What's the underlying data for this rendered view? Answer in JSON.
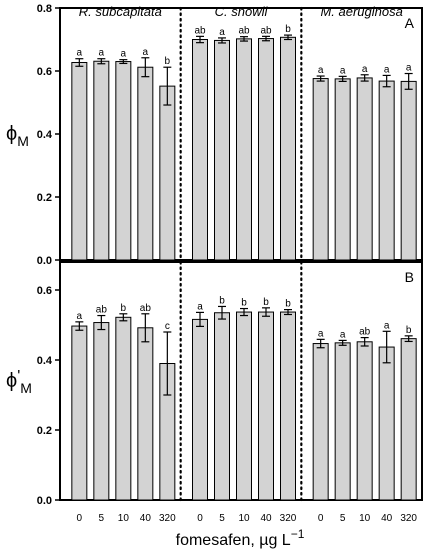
{
  "chart_data": {
    "type": "bar",
    "x_categories": [
      "0",
      "5",
      "10",
      "40",
      "320"
    ],
    "x_axis_label": "fomesafen, µg L",
    "x_axis_label_exponent": "−1",
    "groups": [
      "R. subcapitata",
      "C. snowii",
      "M. aeruginosa"
    ],
    "panels": [
      {
        "label": "A",
        "ylabel_symbol": "ϕ",
        "ylabel_sub": "M",
        "ylabel_prime": "",
        "ylim": [
          0,
          0.8
        ],
        "y_ticks": [
          "0.0",
          "0.2",
          "0.4",
          "0.6",
          "0.8"
        ],
        "y_tick_values": [
          0,
          0.2,
          0.4,
          0.6,
          0.8
        ],
        "series": [
          {
            "group": "R. subcapitata",
            "values": [
              0.627,
              0.631,
              0.63,
              0.612,
              0.552
            ],
            "errors": [
              0.012,
              0.008,
              0.006,
              0.03,
              0.06
            ],
            "letters": [
              "a",
              "a",
              "a",
              "a",
              "b"
            ]
          },
          {
            "group": "C. snowii",
            "values": [
              0.7,
              0.697,
              0.702,
              0.703,
              0.707
            ],
            "errors": [
              0.01,
              0.008,
              0.007,
              0.007,
              0.007
            ],
            "letters": [
              "ab",
              "a",
              "ab",
              "ab",
              "b"
            ]
          },
          {
            "group": "M. aeruginosa",
            "values": [
              0.576,
              0.575,
              0.578,
              0.568,
              0.567
            ],
            "errors": [
              0.008,
              0.008,
              0.01,
              0.018,
              0.025
            ],
            "letters": [
              "a",
              "a",
              "a",
              "a",
              "a"
            ]
          }
        ]
      },
      {
        "label": "B",
        "ylabel_symbol": "ϕ",
        "ylabel_sub": "M",
        "ylabel_prime": "'",
        "ylim": [
          0,
          0.68
        ],
        "y_ticks": [
          "0.0",
          "0.2",
          "0.4",
          "0.6"
        ],
        "y_tick_values": [
          0,
          0.2,
          0.4,
          0.6
        ],
        "series": [
          {
            "group": "R. subcapitata",
            "values": [
              0.497,
              0.507,
              0.522,
              0.492,
              0.39
            ],
            "errors": [
              0.012,
              0.02,
              0.01,
              0.04,
              0.09
            ],
            "letters": [
              "a",
              "ab",
              "b",
              "ab",
              "c"
            ]
          },
          {
            "group": "C. snowii",
            "values": [
              0.516,
              0.535,
              0.537,
              0.537,
              0.537
            ],
            "errors": [
              0.02,
              0.018,
              0.01,
              0.012,
              0.007
            ],
            "letters": [
              "a",
              "b",
              "b",
              "b",
              "b"
            ]
          },
          {
            "group": "M. aeruginosa",
            "values": [
              0.447,
              0.449,
              0.452,
              0.437,
              0.461
            ],
            "errors": [
              0.012,
              0.007,
              0.012,
              0.045,
              0.008
            ],
            "letters": [
              "a",
              "a",
              "ab",
              "a",
              "b"
            ]
          }
        ]
      }
    ]
  }
}
